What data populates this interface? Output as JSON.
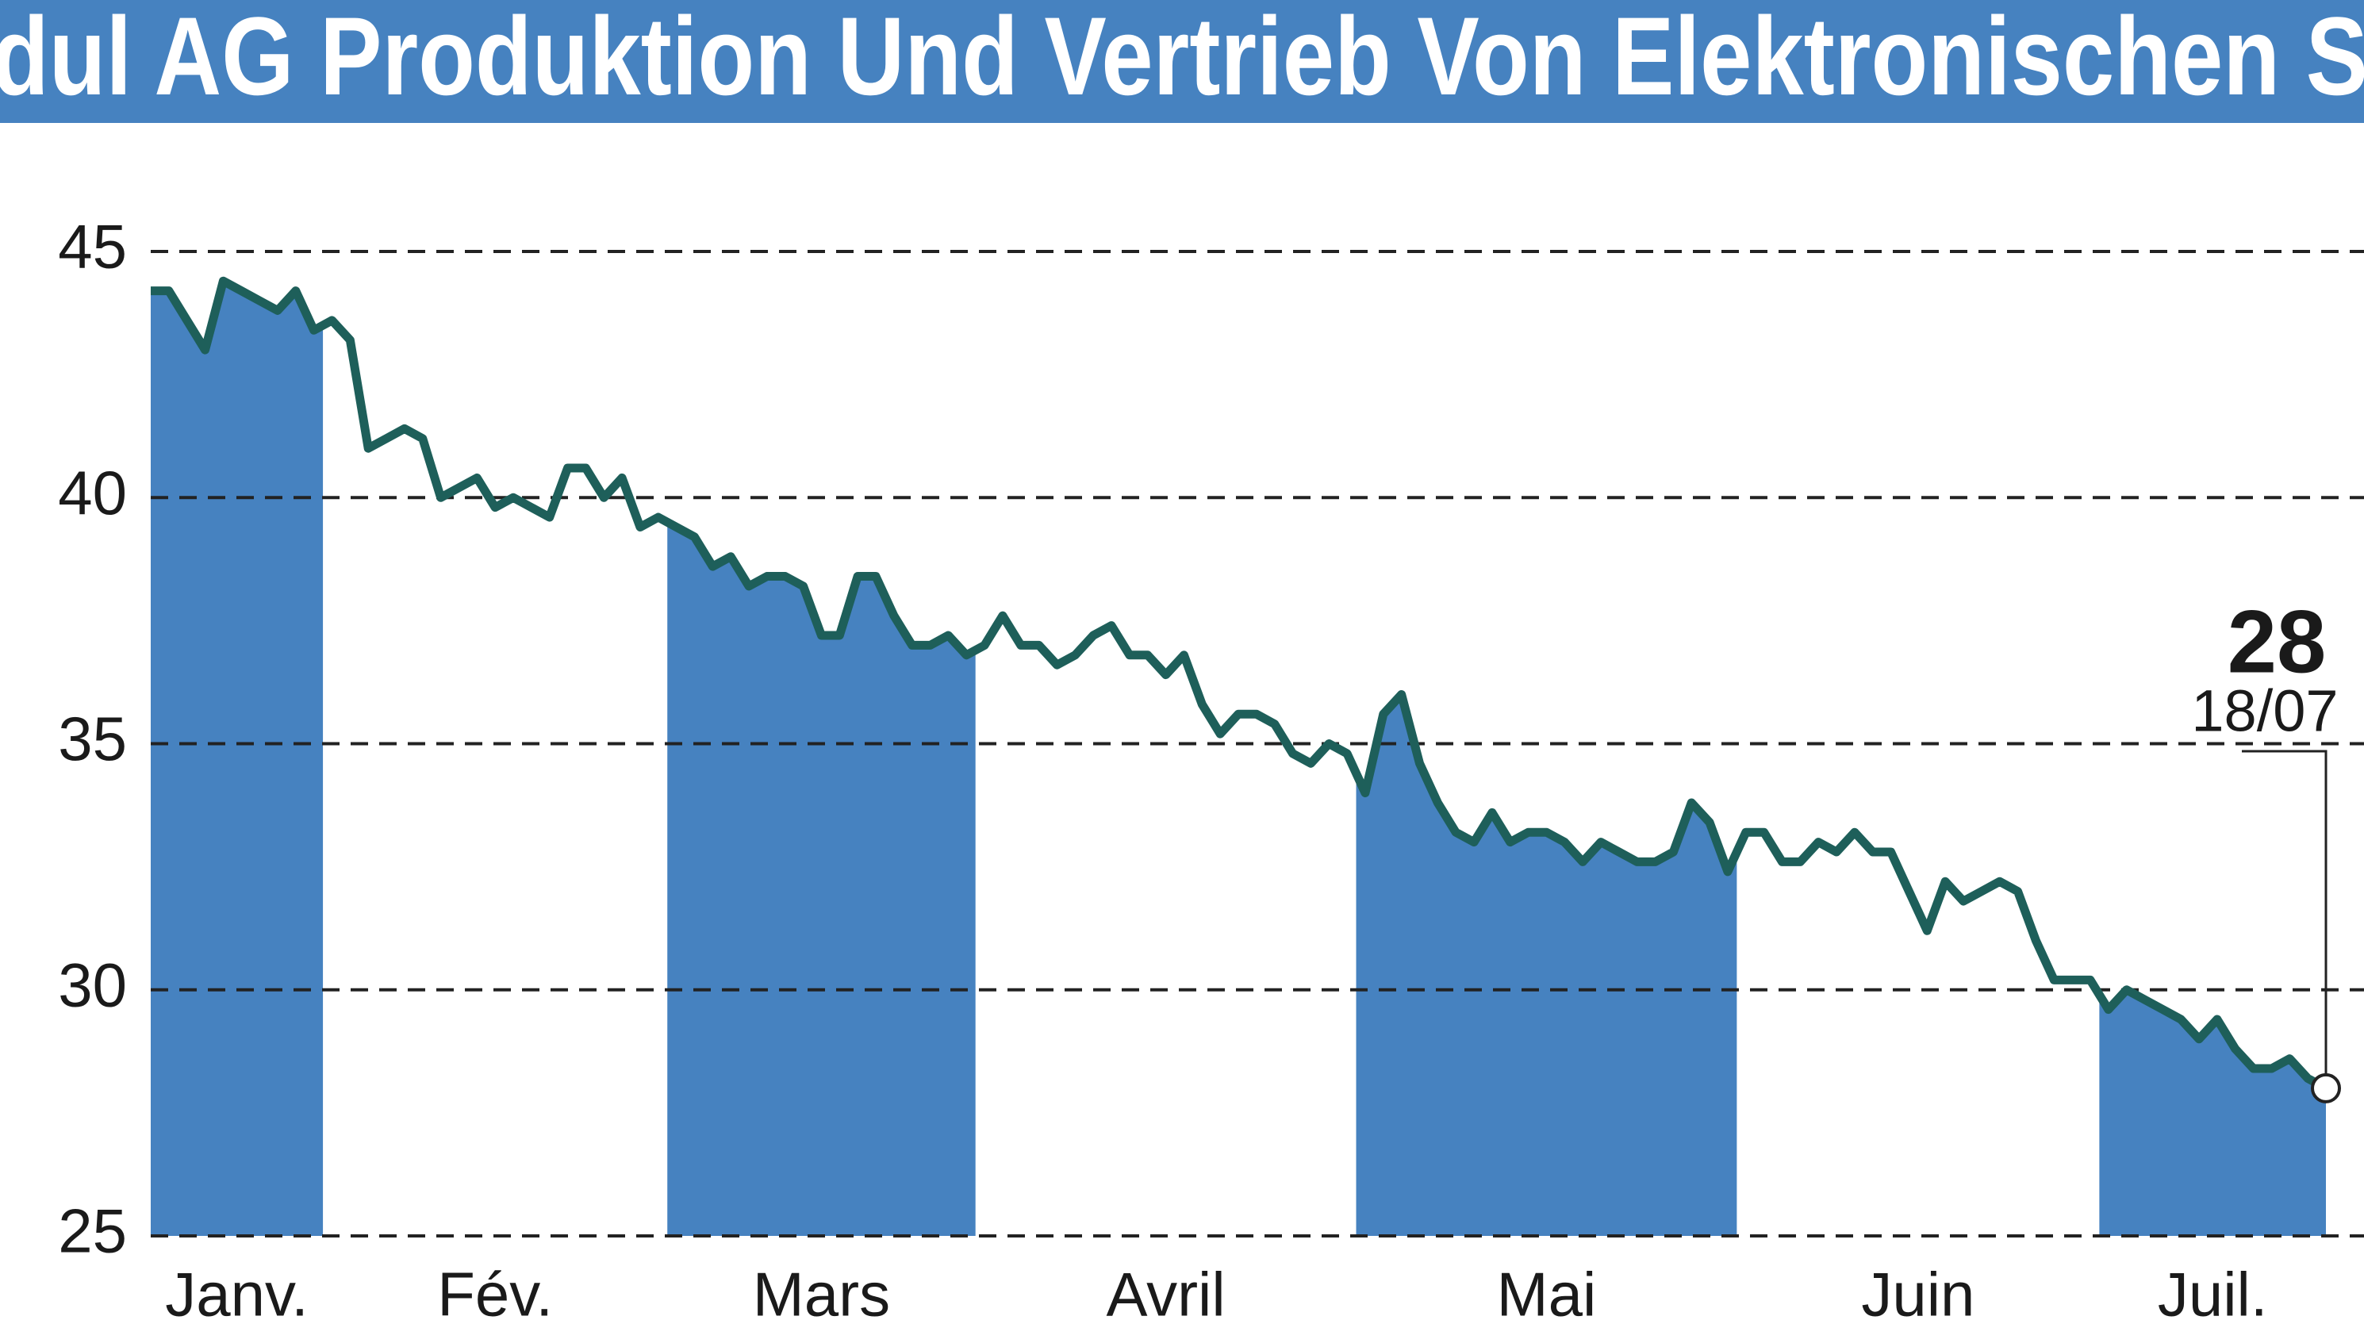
{
  "chart_data": {
    "type": "line",
    "title": "dul AG Produktion Und Vertrieb Von Elektronischen S",
    "months": [
      {
        "label": "Janv.",
        "values": [
          44.2,
          44.2,
          43.6,
          43.0,
          44.4,
          44.2,
          44.0,
          43.8,
          44.2,
          43.4
        ]
      },
      {
        "label": "Fév.",
        "values": [
          43.6,
          43.2,
          41.0,
          41.2,
          41.4,
          41.2,
          40.0,
          40.2,
          40.4,
          39.8,
          40.0,
          39.8,
          39.6,
          40.6,
          40.6,
          40.0,
          40.4,
          39.4,
          39.6
        ]
      },
      {
        "label": "Mars",
        "values": [
          39.4,
          39.2,
          38.6,
          38.8,
          38.2,
          38.4,
          38.4,
          38.2,
          37.2,
          37.2,
          38.4,
          38.4,
          37.6,
          37.0,
          37.0,
          37.2,
          36.8
        ]
      },
      {
        "label": "Avril",
        "values": [
          37.0,
          37.6,
          37.0,
          37.0,
          36.6,
          36.8,
          37.2,
          37.4,
          36.8,
          36.8,
          36.4,
          36.8,
          35.8,
          35.2,
          35.6,
          35.6,
          35.4,
          34.8,
          34.6,
          35.0,
          34.8
        ]
      },
      {
        "label": "Mai",
        "values": [
          34.0,
          35.6,
          36.0,
          34.6,
          33.8,
          33.2,
          33.0,
          33.6,
          33.0,
          33.2,
          33.2,
          33.0,
          32.6,
          33.0,
          32.8,
          32.6,
          32.6,
          32.8,
          33.8,
          33.4,
          32.4
        ]
      },
      {
        "label": "Juin",
        "values": [
          33.2,
          33.2,
          32.6,
          32.6,
          33.0,
          32.8,
          33.2,
          32.8,
          32.8,
          32.0,
          31.2,
          32.2,
          31.8,
          32.0,
          32.2,
          32.0,
          31.0,
          30.2,
          30.2,
          30.2
        ]
      },
      {
        "label": "Juil.",
        "values": [
          29.6,
          30.0,
          29.8,
          29.6,
          29.4,
          29.0,
          29.4,
          28.8,
          28.4,
          28.4,
          28.6,
          28.2,
          28.0
        ]
      }
    ],
    "color": "#1e5f5a",
    "fill_color": "#4682c0",
    "shade_alternate_months": true,
    "ylim": [
      25,
      45
    ],
    "yticks": [
      25,
      30,
      35,
      40,
      45
    ],
    "grid": true,
    "end_label": {
      "value_label": "28",
      "date": "18/07"
    }
  }
}
